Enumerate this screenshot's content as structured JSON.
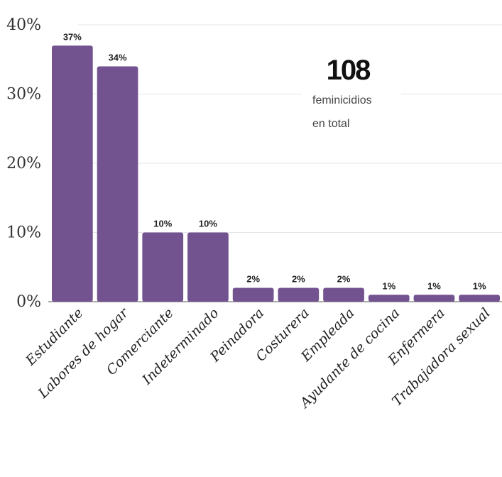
{
  "chart_data": {
    "type": "bar",
    "categories": [
      "Estudiante",
      "Labores de hogar",
      "Comerciante",
      "Indeterminado",
      "Peinadora",
      "Costurera",
      "Empleada",
      "Ayudante de cocina",
      "Enfermera",
      "Trabajadora sexual"
    ],
    "values": [
      37,
      34,
      10,
      10,
      2,
      2,
      2,
      1,
      1,
      1
    ],
    "value_labels": [
      "37%",
      "34%",
      "10%",
      "10%",
      "2%",
      "2%",
      "2%",
      "1%",
      "1%",
      "1%"
    ],
    "y_ticks": [
      "0%",
      "10%",
      "20%",
      "30%",
      "40%"
    ],
    "ylim": [
      0,
      40
    ],
    "grid": true,
    "bar_color": "#735290",
    "annotation": {
      "number": "108",
      "line1": "feminicidios",
      "line2": "en total"
    }
  }
}
